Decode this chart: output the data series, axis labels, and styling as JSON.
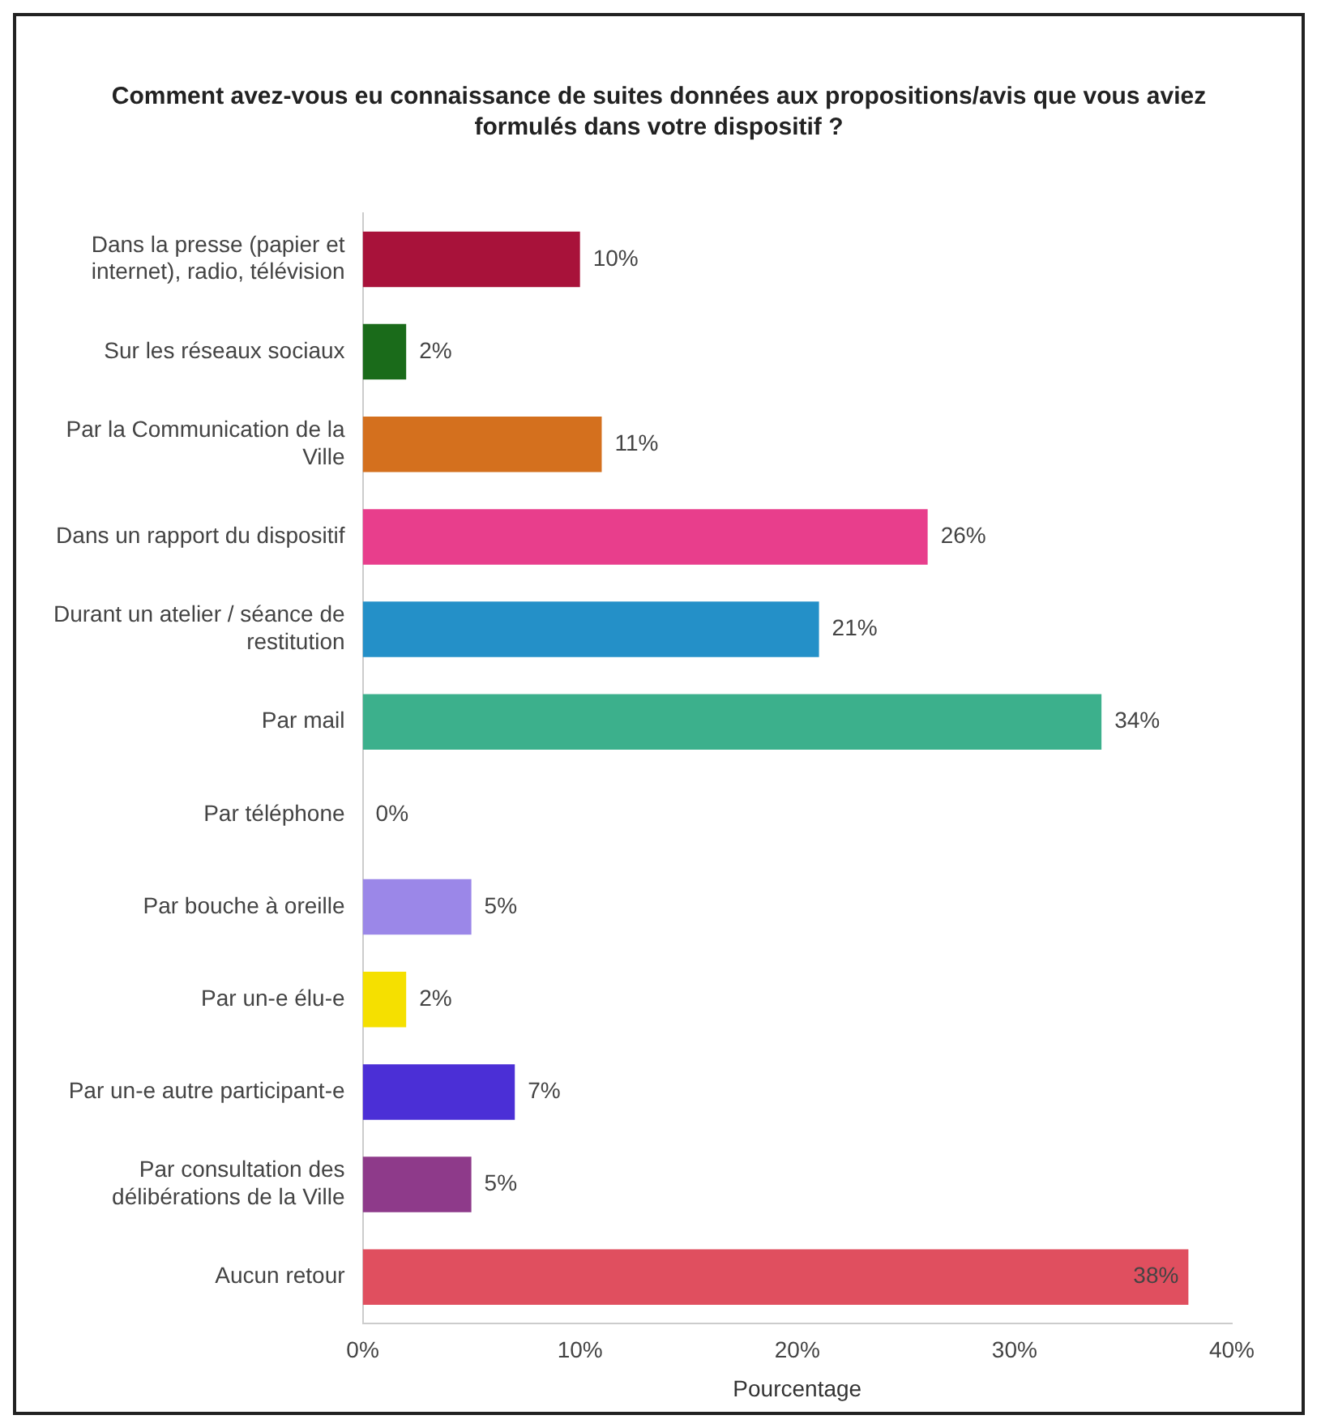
{
  "chart_data": {
    "type": "bar",
    "orientation": "horizontal",
    "title": "Comment avez-vous eu connaissance de suites données aux propositions/avis que vous aviez formulés dans votre dispositif ?",
    "xlabel": "Pourcentage",
    "categories": [
      "Dans la presse (papier et internet), radio, télévision",
      "Sur les réseaux sociaux",
      "Par la Communication de la Ville",
      "Dans un rapport du dispositif",
      "Durant un atelier / séance de restitution",
      "Par mail",
      "Par téléphone",
      "Par bouche à oreille",
      "Par un-e élu-e",
      "Par un-e autre participant-e",
      "Par consultation des délibérations de la Ville",
      "Aucun retour"
    ],
    "values": [
      10,
      2,
      11,
      26,
      21,
      34,
      0,
      5,
      2,
      7,
      5,
      38
    ],
    "colors": [
      "#a8123a",
      "#1a6b1a",
      "#d4701e",
      "#e83e8c",
      "#2490c8",
      "#3cb08c",
      "#999999",
      "#9b87e8",
      "#f5e000",
      "#4b2fd6",
      "#8e3a8a",
      "#e04f5f"
    ],
    "xlim": [
      0,
      40
    ],
    "xticks": [
      {
        "value": 0,
        "label": "0%"
      },
      {
        "value": 10,
        "label": "10%"
      },
      {
        "value": 20,
        "label": "20%"
      },
      {
        "value": 30,
        "label": "30%"
      },
      {
        "value": 40,
        "label": "40%"
      }
    ],
    "value_labels": [
      "10%",
      "2%",
      "11%",
      "26%",
      "21%",
      "34%",
      "0%",
      "5%",
      "2%",
      "7%",
      "5%",
      "38%"
    ],
    "grid": false,
    "legend": false
  }
}
